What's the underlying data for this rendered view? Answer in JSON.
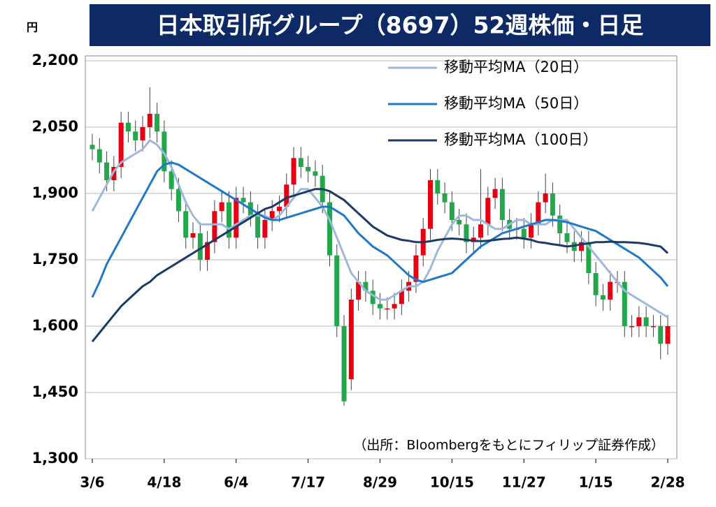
{
  "chart_data": {
    "type": "candlestick",
    "title": "日本取引所グループ（8697）52週株価・日足",
    "y_unit": "円",
    "source": "（出所：Bloombergをもとにフィリップ証券作成）",
    "categories": [
      "3/6",
      null,
      null,
      null,
      null,
      null,
      null,
      null,
      null,
      null,
      "4/18",
      null,
      null,
      null,
      null,
      null,
      null,
      null,
      null,
      null,
      "6/4",
      null,
      null,
      null,
      null,
      null,
      null,
      null,
      null,
      null,
      "7/17",
      null,
      null,
      null,
      null,
      null,
      null,
      null,
      null,
      null,
      "8/29",
      null,
      null,
      null,
      null,
      null,
      null,
      null,
      null,
      null,
      "10/15",
      null,
      null,
      null,
      null,
      null,
      null,
      null,
      null,
      null,
      "11/27",
      null,
      null,
      null,
      null,
      null,
      null,
      null,
      null,
      null,
      "1/15",
      null,
      null,
      null,
      null,
      null,
      null,
      null,
      null,
      null,
      "2/28"
    ],
    "ylim": [
      1300,
      2200
    ],
    "yticks": [
      {
        "value": 1300,
        "label": "1,300"
      },
      {
        "value": 1450,
        "label": "1,450"
      },
      {
        "value": 1600,
        "label": "1,600"
      },
      {
        "value": 1750,
        "label": "1,750"
      },
      {
        "value": 1900,
        "label": "1,900"
      },
      {
        "value": 2050,
        "label": "2,050"
      },
      {
        "value": 2200,
        "label": "2,200"
      }
    ],
    "grid": true,
    "up_color": "#e60012",
    "down_color": "#22a84a",
    "candles": {
      "open": [
        2010,
        2000,
        1970,
        1930,
        1960,
        2060,
        2040,
        2020,
        2050,
        2080,
        2040,
        1950,
        1910,
        1860,
        1800,
        1810,
        1750,
        1790,
        1860,
        1880,
        1800,
        1890,
        1880,
        1850,
        1800,
        1840,
        1860,
        1870,
        1920,
        1980,
        1960,
        1950,
        1940,
        1880,
        1760,
        1600,
        1480,
        1660,
        1700,
        1680,
        1650,
        1640,
        1640,
        1650,
        1680,
        1700,
        1760,
        1820,
        1930,
        1900,
        1880,
        1840,
        1830,
        1790,
        1800,
        1830,
        1890,
        1910,
        1840,
        1820,
        1820,
        1800,
        1830,
        1880,
        1900,
        1850,
        1810,
        1790,
        1770,
        1790,
        1720,
        1670,
        1660,
        1700,
        1700,
        1600,
        1600,
        1620,
        1600,
        1600,
        1560
      ],
      "high": [
        2035,
        2025,
        1995,
        1985,
        2085,
        2085,
        2065,
        2075,
        2140,
        2105,
        2065,
        1975,
        1935,
        1885,
        1835,
        1835,
        1815,
        1885,
        1905,
        1905,
        1915,
        1915,
        1905,
        1875,
        1865,
        1885,
        1895,
        1945,
        2005,
        2005,
        1985,
        1975,
        1965,
        1905,
        1785,
        1625,
        1685,
        1725,
        1725,
        1705,
        1675,
        1665,
        1675,
        1705,
        1725,
        1785,
        1845,
        1955,
        1955,
        1925,
        1905,
        1865,
        1855,
        1825,
        1955,
        1915,
        1935,
        1935,
        1865,
        1845,
        1845,
        1855,
        1905,
        1945,
        1925,
        1875,
        1835,
        1815,
        1815,
        1815,
        1745,
        1695,
        1725,
        1725,
        1725,
        1625,
        1645,
        1645,
        1625,
        1625,
        1625
      ],
      "low": [
        1975,
        1945,
        1905,
        1905,
        1935,
        2015,
        1995,
        1995,
        2025,
        2015,
        1925,
        1885,
        1835,
        1775,
        1775,
        1725,
        1725,
        1765,
        1835,
        1775,
        1775,
        1855,
        1825,
        1775,
        1775,
        1815,
        1835,
        1845,
        1895,
        1935,
        1925,
        1915,
        1855,
        1735,
        1575,
        1420,
        1455,
        1635,
        1655,
        1625,
        1615,
        1615,
        1615,
        1625,
        1655,
        1675,
        1735,
        1795,
        1875,
        1855,
        1815,
        1805,
        1765,
        1765,
        1775,
        1805,
        1865,
        1815,
        1795,
        1795,
        1775,
        1775,
        1805,
        1855,
        1825,
        1785,
        1765,
        1745,
        1745,
        1695,
        1645,
        1635,
        1635,
        1675,
        1575,
        1575,
        1575,
        1575,
        1575,
        1525,
        1535
      ],
      "close": [
        2000,
        1970,
        1930,
        1960,
        2060,
        2040,
        2020,
        2050,
        2080,
        2040,
        1950,
        1910,
        1860,
        1800,
        1810,
        1750,
        1790,
        1860,
        1880,
        1800,
        1890,
        1880,
        1850,
        1800,
        1840,
        1860,
        1870,
        1920,
        1980,
        1960,
        1950,
        1940,
        1880,
        1760,
        1600,
        1430,
        1660,
        1700,
        1680,
        1650,
        1640,
        1640,
        1650,
        1680,
        1700,
        1760,
        1820,
        1930,
        1900,
        1880,
        1840,
        1830,
        1790,
        1800,
        1830,
        1890,
        1910,
        1840,
        1820,
        1820,
        1800,
        1830,
        1880,
        1900,
        1850,
        1810,
        1790,
        1770,
        1790,
        1720,
        1670,
        1660,
        1700,
        1700,
        1600,
        1600,
        1620,
        1600,
        1600,
        1560,
        1600
      ]
    },
    "series": [
      {
        "name": "移動平均MA（20日）",
        "color": "#9db8da",
        "values": [
          1860,
          1890,
          1920,
          1950,
          1970,
          1980,
          1990,
          2000,
          2020,
          2010,
          1990,
          1960,
          1920,
          1880,
          1850,
          1830,
          1830,
          1830,
          1830,
          1820,
          1830,
          1840,
          1850,
          1850,
          1850,
          1840,
          1850,
          1870,
          1890,
          1910,
          1910,
          1890,
          1870,
          1840,
          1800,
          1760,
          1720,
          1700,
          1680,
          1670,
          1660,
          1660,
          1670,
          1680,
          1690,
          1690,
          1700,
          1730,
          1770,
          1800,
          1830,
          1850,
          1850,
          1840,
          1840,
          1830,
          1820,
          1820,
          1830,
          1840,
          1840,
          1830,
          1830,
          1830,
          1840,
          1840,
          1840,
          1820,
          1800,
          1780,
          1760,
          1740,
          1720,
          1700,
          1680,
          1670,
          1660,
          1650,
          1640,
          1630,
          1620
        ]
      },
      {
        "name": "移動平均MA（50日）",
        "color": "#1f78c8",
        "values": [
          1665,
          1700,
          1740,
          1770,
          1800,
          1830,
          1860,
          1890,
          1920,
          1950,
          1965,
          1970,
          1965,
          1955,
          1945,
          1935,
          1925,
          1915,
          1905,
          1895,
          1885,
          1875,
          1865,
          1855,
          1845,
          1840,
          1840,
          1845,
          1850,
          1855,
          1860,
          1865,
          1870,
          1870,
          1860,
          1850,
          1830,
          1810,
          1795,
          1780,
          1770,
          1760,
          1745,
          1730,
          1715,
          1705,
          1700,
          1705,
          1710,
          1715,
          1720,
          1735,
          1750,
          1765,
          1780,
          1790,
          1800,
          1810,
          1815,
          1820,
          1825,
          1830,
          1835,
          1840,
          1840,
          1838,
          1835,
          1830,
          1825,
          1820,
          1815,
          1805,
          1795,
          1785,
          1775,
          1765,
          1755,
          1740,
          1725,
          1710,
          1690
        ]
      },
      {
        "name": "移動平均MA（100日）",
        "color": "#1b3a66",
        "values": [
          1565,
          1585,
          1605,
          1625,
          1645,
          1660,
          1675,
          1690,
          1700,
          1715,
          1725,
          1735,
          1745,
          1755,
          1765,
          1775,
          1785,
          1795,
          1805,
          1815,
          1825,
          1835,
          1845,
          1855,
          1865,
          1870,
          1880,
          1890,
          1895,
          1900,
          1905,
          1910,
          1910,
          1905,
          1895,
          1885,
          1870,
          1855,
          1840,
          1825,
          1815,
          1805,
          1800,
          1795,
          1793,
          1790,
          1790,
          1792,
          1795,
          1797,
          1798,
          1797,
          1795,
          1793,
          1792,
          1793,
          1795,
          1797,
          1798,
          1800,
          1798,
          1795,
          1790,
          1788,
          1785,
          1783,
          1780,
          1782,
          1785,
          1787,
          1790,
          1790,
          1791,
          1790,
          1790,
          1789,
          1788,
          1786,
          1783,
          1780,
          1765
        ]
      }
    ]
  }
}
